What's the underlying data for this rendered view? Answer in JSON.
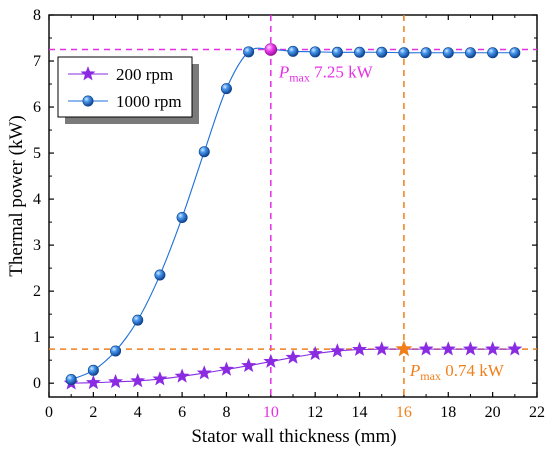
{
  "chart_data": {
    "type": "line",
    "title": "",
    "xlabel": "Stator wall thickness (mm)",
    "ylabel": "Thermal power (kW)",
    "xlim": [
      0,
      22
    ],
    "ylim": [
      -0.3,
      8
    ],
    "x_ticks": [
      0,
      2,
      4,
      6,
      8,
      10,
      12,
      14,
      16,
      18,
      20,
      22
    ],
    "y_ticks": [
      0,
      1,
      2,
      3,
      4,
      5,
      6,
      7,
      8
    ],
    "grid": false,
    "legend_position": "top-left",
    "series": [
      {
        "name": "200 rpm",
        "marker": "star",
        "color": "#8A2BE2",
        "x": [
          1,
          2,
          3,
          4,
          5,
          6,
          7,
          8,
          9,
          10,
          11,
          12,
          13,
          14,
          15,
          16,
          17,
          18,
          19,
          20,
          21
        ],
        "values": [
          0.0,
          0.01,
          0.03,
          0.05,
          0.09,
          0.15,
          0.22,
          0.3,
          0.38,
          0.47,
          0.56,
          0.64,
          0.7,
          0.73,
          0.74,
          0.74,
          0.74,
          0.74,
          0.74,
          0.74,
          0.74
        ]
      },
      {
        "name": "1000 rpm",
        "marker": "sphere",
        "color": "#1E6FD9",
        "x": [
          1,
          2,
          3,
          4,
          5,
          6,
          7,
          8,
          9,
          10,
          11,
          12,
          13,
          14,
          15,
          16,
          17,
          18,
          19,
          20,
          21
        ],
        "values": [
          0.08,
          0.28,
          0.7,
          1.37,
          2.35,
          3.6,
          5.03,
          6.4,
          7.2,
          7.25,
          7.21,
          7.2,
          7.19,
          7.19,
          7.19,
          7.18,
          7.18,
          7.18,
          7.18,
          7.18,
          7.18
        ]
      }
    ],
    "annotations": [
      {
        "x": 10,
        "y": 7.25,
        "sub": "max",
        "value": "7.25 kW",
        "color": "#E52FE5",
        "sym": "P"
      },
      {
        "x": 16,
        "y": 0.74,
        "sub": "max",
        "value": "0.74 kW",
        "color": "#F07F1A",
        "sym": "P"
      }
    ],
    "highlight_x_labels": [
      {
        "x": 10,
        "label": "10",
        "color": "#E52FE5"
      },
      {
        "x": 16,
        "label": "16",
        "color": "#F07F1A"
      }
    ]
  }
}
